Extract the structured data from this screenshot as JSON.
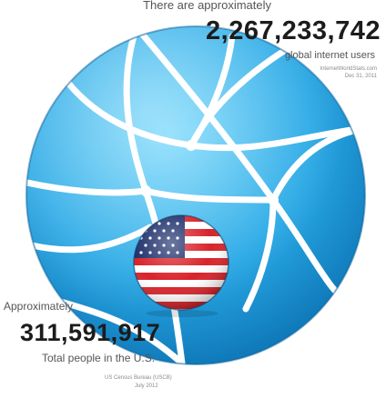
{
  "top": {
    "lead": "There are approximately",
    "number": "2,267,233,742",
    "unit": "global internet users",
    "source": "InternetWorldStats.com",
    "date": "Dec 31, 2011"
  },
  "bottom": {
    "lead": "Approximately",
    "number": "311,591,917",
    "unit": "Total people in the U.S.",
    "source": "US Census Bureau (USCB)",
    "date": "July 2012"
  },
  "colors": {
    "globe_light": "#4cc6f4",
    "globe_dark": "#0a74b8",
    "flag_red": "#d8232a",
    "flag_blue": "#1e2f6b",
    "text": "#1c1c1c"
  },
  "icons": {
    "globe": "network-globe-icon",
    "flag": "us-flag-icon"
  }
}
